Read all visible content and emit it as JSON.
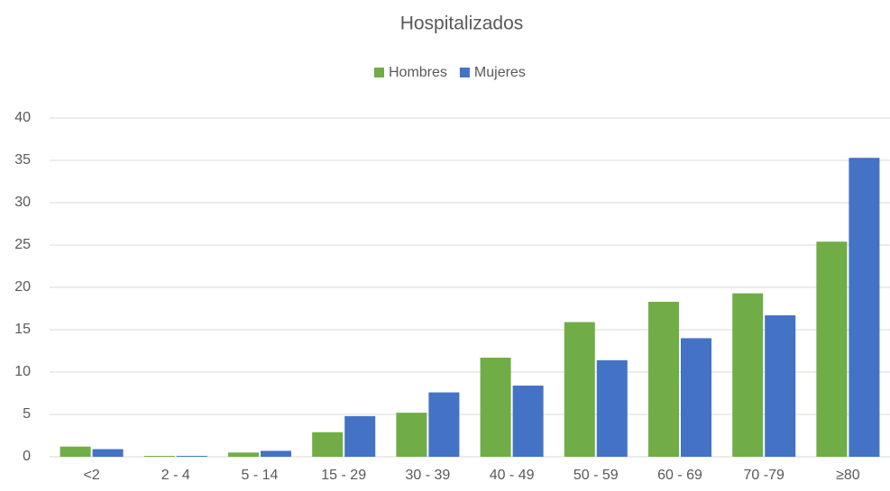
{
  "chart_data": {
    "type": "bar",
    "title": "Hospitalizados",
    "categories": [
      "<2",
      "2 - 4",
      "5 - 14",
      "15 - 29",
      "30 - 39",
      "40 - 49",
      "50 - 59",
      "60 - 69",
      "70 -79",
      "≥80"
    ],
    "series": [
      {
        "name": "Hombres",
        "color": "#70ad47",
        "values": [
          1.2,
          0.1,
          0.5,
          2.9,
          5.2,
          11.7,
          15.9,
          18.3,
          19.3,
          25.4
        ]
      },
      {
        "name": "Mujeres",
        "color": "#4472c4",
        "values": [
          0.9,
          0.1,
          0.7,
          4.8,
          7.6,
          8.4,
          11.4,
          14.0,
          16.7,
          35.3
        ]
      }
    ],
    "ylim": [
      0,
      40
    ],
    "yticks": [
      0,
      5,
      10,
      15,
      20,
      25,
      30,
      35,
      40
    ],
    "grid": true,
    "legend": "top"
  }
}
